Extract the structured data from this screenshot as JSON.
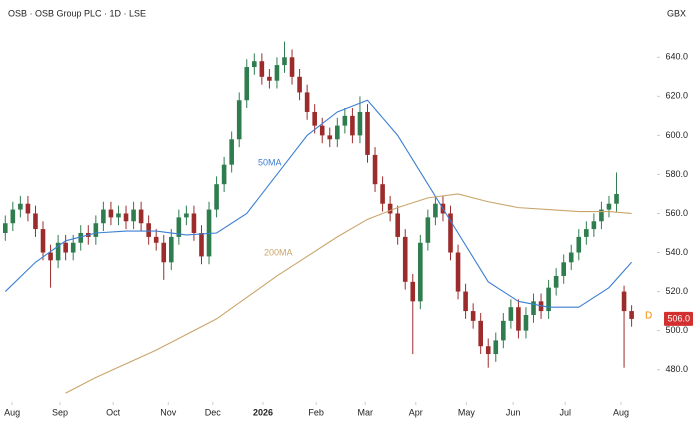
{
  "chart_data": {
    "type": "candlestick",
    "title": "OSB · OSB Group PLC · 1D · LSE",
    "currency": "GBX",
    "up_color": "#2f7d4e",
    "down_color": "#9c2b2b",
    "open": [
      550,
      555,
      562,
      565,
      560,
      552,
      540,
      536,
      545,
      540,
      545,
      550,
      548,
      555,
      562,
      558,
      560,
      556,
      562,
      555,
      548,
      545,
      535,
      548,
      558,
      560,
      550,
      538,
      562,
      575,
      585,
      598,
      618,
      635,
      638,
      630,
      628,
      636,
      640,
      630,
      622,
      612,
      605,
      600,
      598,
      605,
      610,
      600,
      612,
      590,
      575,
      565,
      560,
      548,
      525,
      515,
      545,
      558,
      565,
      560,
      540,
      520,
      510,
      505,
      492,
      488,
      495,
      505,
      512,
      500,
      508,
      515,
      510,
      522,
      528,
      535,
      540,
      548,
      552,
      556,
      562,
      565,
      520,
      510
    ],
    "high": [
      559,
      566,
      569,
      569,
      564,
      556,
      544,
      549,
      549,
      549,
      554,
      554,
      559,
      566,
      566,
      564,
      564,
      566,
      566,
      559,
      552,
      549,
      552,
      562,
      564,
      564,
      554,
      566,
      579,
      589,
      602,
      622,
      639,
      642,
      642,
      634,
      640,
      648,
      644,
      634,
      626,
      616,
      609,
      604,
      609,
      614,
      614,
      620,
      616,
      594,
      579,
      569,
      564,
      552,
      529,
      549,
      562,
      569,
      569,
      564,
      544,
      524,
      514,
      509,
      496,
      499,
      509,
      516,
      516,
      512,
      519,
      519,
      526,
      532,
      539,
      544,
      552,
      556,
      560,
      566,
      569,
      581,
      523,
      513
    ],
    "low": [
      546,
      551,
      558,
      556,
      548,
      536,
      522,
      532,
      536,
      536,
      541,
      544,
      544,
      551,
      554,
      554,
      552,
      552,
      551,
      544,
      541,
      526,
      531,
      544,
      554,
      546,
      534,
      534,
      558,
      571,
      581,
      594,
      614,
      631,
      626,
      624,
      624,
      632,
      626,
      618,
      608,
      601,
      596,
      594,
      594,
      601,
      596,
      596,
      586,
      571,
      561,
      556,
      544,
      521,
      488,
      511,
      541,
      554,
      556,
      536,
      516,
      506,
      501,
      488,
      481,
      484,
      491,
      501,
      496,
      496,
      504,
      506,
      506,
      518,
      524,
      531,
      536,
      544,
      548,
      552,
      558,
      561,
      481,
      502
    ],
    "close": [
      555,
      562,
      565,
      560,
      552,
      540,
      536,
      545,
      540,
      545,
      550,
      548,
      555,
      562,
      558,
      560,
      556,
      562,
      555,
      548,
      545,
      535,
      548,
      558,
      560,
      550,
      538,
      562,
      575,
      585,
      598,
      618,
      635,
      638,
      630,
      628,
      636,
      640,
      630,
      622,
      612,
      605,
      600,
      598,
      605,
      610,
      600,
      612,
      590,
      575,
      565,
      560,
      548,
      525,
      515,
      545,
      558,
      565,
      560,
      540,
      520,
      510,
      505,
      492,
      488,
      495,
      505,
      512,
      500,
      508,
      515,
      510,
      522,
      528,
      535,
      540,
      548,
      552,
      556,
      562,
      565,
      570,
      510,
      506
    ],
    "lines": [
      {
        "name": "50MA",
        "color": "#3b7fd4",
        "x": [
          0,
          4,
          8,
          12,
          16,
          20,
          24,
          28,
          32,
          36,
          40,
          44,
          48,
          52,
          56,
          60,
          64,
          68,
          72,
          76,
          80,
          83
        ],
        "values": [
          520,
          535,
          546,
          550,
          551,
          551,
          549,
          550,
          560,
          580,
          600,
          612,
          618,
          600,
          575,
          550,
          525,
          515,
          512,
          512,
          522,
          535
        ]
      },
      {
        "name": "200MA",
        "color": "#c9a56a",
        "x": [
          0,
          4,
          8,
          12,
          16,
          20,
          24,
          28,
          32,
          36,
          40,
          44,
          48,
          52,
          56,
          60,
          64,
          68,
          72,
          76,
          80,
          83
        ],
        "values": [
          null,
          null,
          468,
          476,
          483,
          490,
          498,
          506,
          517,
          528,
          538,
          548,
          557,
          563,
          568,
          570,
          566,
          563,
          562,
          561,
          561,
          560
        ]
      }
    ],
    "xlim": [
      -0.7,
      86.1
    ],
    "xticks": [
      {
        "value": 0.9,
        "label": "Aug"
      },
      {
        "value": 7.25,
        "label": "Sep"
      },
      {
        "value": 14.3,
        "label": "Oct"
      },
      {
        "value": 21.6,
        "label": "Nov"
      },
      {
        "value": 27.5,
        "label": "Dec"
      },
      {
        "value": 34.15,
        "label": "2026"
      },
      {
        "value": 41.2,
        "label": "Feb"
      },
      {
        "value": 47.7,
        "label": "Mar"
      },
      {
        "value": 54.4,
        "label": "Apr"
      },
      {
        "value": 61.1,
        "label": "May"
      },
      {
        "value": 67.3,
        "label": "Jun"
      },
      {
        "value": 74.2,
        "label": "Jul"
      },
      {
        "value": 81.6,
        "label": "Aug"
      }
    ],
    "ylim": [
      466,
      655
    ],
    "yticks": [
      {
        "value": 480,
        "label": "480.0"
      },
      {
        "value": 500,
        "label": "500.0"
      },
      {
        "value": 520,
        "label": "520.0"
      },
      {
        "value": 540,
        "label": "540.0"
      },
      {
        "value": 560,
        "label": "560.0"
      },
      {
        "value": 580,
        "label": "580.0"
      },
      {
        "value": 600,
        "label": "600.0"
      },
      {
        "value": 620,
        "label": "620.0"
      },
      {
        "value": 640,
        "label": "640.0"
      }
    ],
    "last_price": {
      "value": 506,
      "label": "506.0"
    },
    "marker": "D"
  }
}
